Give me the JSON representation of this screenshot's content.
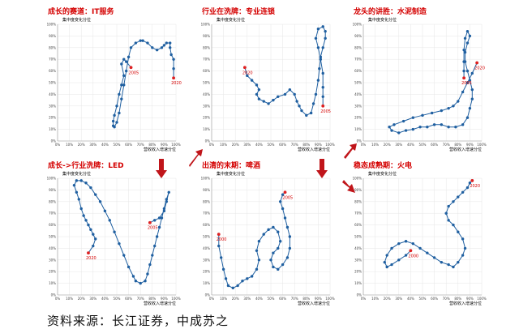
{
  "colors": {
    "series": "#1f5fa0",
    "highlight": "#e02020",
    "title": "#d40000",
    "arrow": "#c0151a"
  },
  "source_note": "资料来源：长江证券，中成苏之",
  "chart_data": [
    {
      "type": "scatter",
      "title": "成长的赛道：IT服务",
      "ylabel": "集中度变化分位",
      "xlabel": "营收收入增速分位",
      "xlim": [
        0,
        100
      ],
      "ylim": [
        0,
        100
      ],
      "grid": true,
      "start_label": "2005",
      "end_label": "2020",
      "start": [
        62,
        63
      ],
      "end": [
        98,
        54
      ],
      "points": [
        [
          62,
          63
        ],
        [
          58,
          68
        ],
        [
          56,
          70
        ],
        [
          54,
          66
        ],
        [
          56,
          56
        ],
        [
          54,
          48
        ],
        [
          52,
          40
        ],
        [
          50,
          30
        ],
        [
          48,
          22
        ],
        [
          47,
          17
        ],
        [
          47,
          13
        ],
        [
          48,
          12
        ],
        [
          50,
          16
        ],
        [
          52,
          24
        ],
        [
          54,
          36
        ],
        [
          56,
          48
        ],
        [
          58,
          60
        ],
        [
          60,
          72
        ],
        [
          62,
          80
        ],
        [
          66,
          84
        ],
        [
          70,
          86
        ],
        [
          72,
          86
        ],
        [
          76,
          84
        ],
        [
          80,
          80
        ],
        [
          84,
          78
        ],
        [
          88,
          80
        ],
        [
          90,
          82
        ],
        [
          92,
          84
        ],
        [
          95,
          84
        ],
        [
          95,
          80
        ],
        [
          96,
          74
        ],
        [
          98,
          70
        ],
        [
          98,
          62
        ],
        [
          98,
          54
        ]
      ]
    },
    {
      "type": "scatter",
      "title": "行业在洗牌：专业连锁",
      "ylabel": "集中度变化分位",
      "xlabel": "营收收入增速分位",
      "xlim": [
        0,
        100
      ],
      "ylim": [
        0,
        100
      ],
      "grid": true,
      "start_label": "2020",
      "end_label": "2005",
      "start": [
        28,
        63
      ],
      "end": [
        94,
        30
      ],
      "points": [
        [
          28,
          63
        ],
        [
          30,
          56
        ],
        [
          34,
          52
        ],
        [
          38,
          48
        ],
        [
          40,
          44
        ],
        [
          38,
          40
        ],
        [
          40,
          36
        ],
        [
          44,
          34
        ],
        [
          48,
          32
        ],
        [
          52,
          35
        ],
        [
          56,
          38
        ],
        [
          62,
          40
        ],
        [
          66,
          44
        ],
        [
          70,
          40
        ],
        [
          72,
          34
        ],
        [
          74,
          30
        ],
        [
          76,
          26
        ],
        [
          80,
          22
        ],
        [
          84,
          24
        ],
        [
          86,
          32
        ],
        [
          88,
          40
        ],
        [
          90,
          52
        ],
        [
          91,
          62
        ],
        [
          92,
          72
        ],
        [
          94,
          80
        ],
        [
          96,
          88
        ],
        [
          96,
          94
        ],
        [
          94,
          98
        ],
        [
          90,
          96
        ],
        [
          88,
          88
        ],
        [
          90,
          80
        ],
        [
          92,
          70
        ],
        [
          94,
          58
        ],
        [
          94,
          46
        ],
        [
          94,
          38
        ],
        [
          94,
          30
        ]
      ]
    },
    {
      "type": "scatter",
      "title": "龙头的讲胜：水泥制造",
      "ylabel": "集中度变化分位",
      "xlabel": "营收收入增速分位",
      "xlim": [
        0,
        100
      ],
      "ylim": [
        0,
        100
      ],
      "grid": true,
      "start_label": "2020",
      "end_label": "2005",
      "start": [
        96,
        67
      ],
      "end": [
        85,
        54
      ],
      "points": [
        [
          96,
          67
        ],
        [
          92,
          58
        ],
        [
          88,
          50
        ],
        [
          84,
          42
        ],
        [
          80,
          34
        ],
        [
          76,
          30
        ],
        [
          72,
          28
        ],
        [
          66,
          26
        ],
        [
          58,
          24
        ],
        [
          50,
          22
        ],
        [
          42,
          20
        ],
        [
          34,
          17
        ],
        [
          26,
          14
        ],
        [
          22,
          12
        ],
        [
          24,
          9
        ],
        [
          30,
          7
        ],
        [
          36,
          9
        ],
        [
          42,
          10
        ],
        [
          48,
          12
        ],
        [
          54,
          12
        ],
        [
          60,
          14
        ],
        [
          66,
          14
        ],
        [
          72,
          12
        ],
        [
          78,
          12
        ],
        [
          84,
          14
        ],
        [
          88,
          20
        ],
        [
          90,
          28
        ],
        [
          92,
          36
        ],
        [
          92,
          44
        ],
        [
          90,
          52
        ],
        [
          88,
          60
        ],
        [
          86,
          68
        ],
        [
          86,
          76
        ],
        [
          88,
          84
        ],
        [
          90,
          90
        ],
        [
          88,
          94
        ],
        [
          86,
          88
        ],
        [
          85,
          78
        ],
        [
          85,
          68
        ],
        [
          85,
          60
        ],
        [
          85,
          54
        ]
      ]
    },
    {
      "type": "scatter",
      "title": "成长->行业洗牌：LED",
      "ylabel": "集中度变化分位",
      "xlabel": "营收收入增速分位",
      "xlim": [
        0,
        100
      ],
      "ylim": [
        0,
        100
      ],
      "grid": true,
      "start_label": "2020",
      "end_label": "2005",
      "start": [
        26,
        36
      ],
      "end": [
        78,
        62
      ],
      "points": [
        [
          26,
          36
        ],
        [
          30,
          42
        ],
        [
          32,
          48
        ],
        [
          30,
          52
        ],
        [
          28,
          56
        ],
        [
          26,
          60
        ],
        [
          24,
          64
        ],
        [
          22,
          68
        ],
        [
          20,
          74
        ],
        [
          18,
          82
        ],
        [
          16,
          88
        ],
        [
          14,
          94
        ],
        [
          16,
          98
        ],
        [
          20,
          98
        ],
        [
          24,
          96
        ],
        [
          28,
          92
        ],
        [
          32,
          86
        ],
        [
          36,
          80
        ],
        [
          40,
          72
        ],
        [
          44,
          64
        ],
        [
          48,
          54
        ],
        [
          52,
          44
        ],
        [
          56,
          34
        ],
        [
          60,
          24
        ],
        [
          64,
          16
        ],
        [
          66,
          12
        ],
        [
          70,
          10
        ],
        [
          74,
          12
        ],
        [
          76,
          18
        ],
        [
          78,
          26
        ],
        [
          80,
          34
        ],
        [
          82,
          42
        ],
        [
          84,
          50
        ],
        [
          86,
          58
        ],
        [
          88,
          66
        ],
        [
          90,
          74
        ],
        [
          92,
          82
        ],
        [
          94,
          88
        ],
        [
          92,
          80
        ],
        [
          90,
          72
        ],
        [
          86,
          66
        ],
        [
          82,
          64
        ],
        [
          78,
          62
        ]
      ]
    },
    {
      "type": "scatter",
      "title": "出清的末期：啤酒",
      "ylabel": "集中度变化分位",
      "xlabel": "营收收入增速分位",
      "xlim": [
        0,
        100
      ],
      "ylim": [
        0,
        100
      ],
      "grid": true,
      "start_label": "2000",
      "end_label": "2005",
      "start": [
        6,
        52
      ],
      "end": [
        62,
        88
      ],
      "points": [
        [
          6,
          52
        ],
        [
          6,
          42
        ],
        [
          8,
          32
        ],
        [
          10,
          22
        ],
        [
          12,
          14
        ],
        [
          14,
          8
        ],
        [
          18,
          6
        ],
        [
          22,
          8
        ],
        [
          26,
          12
        ],
        [
          30,
          14
        ],
        [
          34,
          16
        ],
        [
          38,
          22
        ],
        [
          40,
          30
        ],
        [
          38,
          38
        ],
        [
          40,
          46
        ],
        [
          44,
          52
        ],
        [
          48,
          56
        ],
        [
          52,
          58
        ],
        [
          56,
          54
        ],
        [
          58,
          46
        ],
        [
          56,
          40
        ],
        [
          52,
          36
        ],
        [
          50,
          30
        ],
        [
          52,
          24
        ],
        [
          56,
          22
        ],
        [
          60,
          26
        ],
        [
          64,
          32
        ],
        [
          66,
          40
        ],
        [
          66,
          50
        ],
        [
          64,
          58
        ],
        [
          62,
          66
        ],
        [
          60,
          74
        ],
        [
          58,
          80
        ],
        [
          60,
          86
        ],
        [
          62,
          88
        ]
      ]
    },
    {
      "type": "scatter",
      "title": "稳态成熟期：火电",
      "ylabel": "集中度变化分位",
      "xlabel": "营收收入增速分位",
      "xlim": [
        0,
        100
      ],
      "ylim": [
        0,
        100
      ],
      "grid": true,
      "start_label": "2000",
      "end_label": "2020",
      "start": [
        40,
        38
      ],
      "end": [
        92,
        98
      ],
      "points": [
        [
          40,
          38
        ],
        [
          36,
          34
        ],
        [
          30,
          30
        ],
        [
          24,
          26
        ],
        [
          20,
          24
        ],
        [
          18,
          28
        ],
        [
          20,
          34
        ],
        [
          24,
          40
        ],
        [
          30,
          44
        ],
        [
          36,
          46
        ],
        [
          42,
          44
        ],
        [
          48,
          40
        ],
        [
          54,
          36
        ],
        [
          60,
          32
        ],
        [
          66,
          28
        ],
        [
          72,
          26
        ],
        [
          76,
          24
        ],
        [
          80,
          28
        ],
        [
          84,
          34
        ],
        [
          86,
          40
        ],
        [
          84,
          48
        ],
        [
          80,
          54
        ],
        [
          76,
          60
        ],
        [
          72,
          64
        ],
        [
          70,
          70
        ],
        [
          72,
          76
        ],
        [
          76,
          80
        ],
        [
          80,
          84
        ],
        [
          84,
          88
        ],
        [
          88,
          92
        ],
        [
          90,
          96
        ],
        [
          92,
          98
        ]
      ]
    }
  ]
}
